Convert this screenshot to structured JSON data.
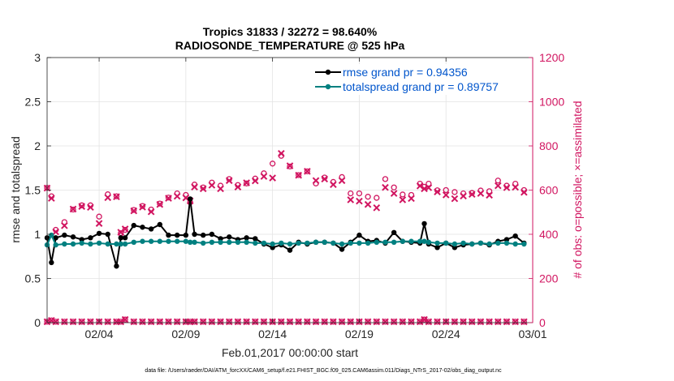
{
  "chart_data": {
    "type": "line",
    "title": "Tropics 31833 / 32272 = 98.640%",
    "subtitle": "RADIOSONDE_TEMPERATURE @ 525 hPa",
    "xlabel": "Feb.01,2017 00:00:00 start",
    "ylabel": "rmse and totalspread",
    "y2label": "# of obs: o=possible; ×=assimilated",
    "footnote": "data file: /Users/raeder/DAI/ATM_forcXX/CAM6_setup/f.e21.FHIST_BGC.f09_025.CAM6assim.011/Diags_NTrS_2017-02/obs_diag_output.nc",
    "xlim": [
      1,
      29
    ],
    "ylim": [
      0,
      3
    ],
    "y2lim": [
      0,
      1200
    ],
    "grid": true,
    "legend_position": "top-right",
    "x_ticks": [
      {
        "value": 4,
        "label": "02/04"
      },
      {
        "value": 9,
        "label": "02/09"
      },
      {
        "value": 14,
        "label": "02/14"
      },
      {
        "value": 19,
        "label": "02/19"
      },
      {
        "value": 24,
        "label": "02/24"
      },
      {
        "value": 29,
        "label": "03/01"
      }
    ],
    "y_ticks": [
      {
        "value": 0,
        "label": "0"
      },
      {
        "value": 0.5,
        "label": "0.5"
      },
      {
        "value": 1,
        "label": "1"
      },
      {
        "value": 1.5,
        "label": "1.5"
      },
      {
        "value": 2,
        "label": "2"
      },
      {
        "value": 2.5,
        "label": "2.5"
      },
      {
        "value": 3,
        "label": "3"
      }
    ],
    "y2_ticks": [
      {
        "value": 0,
        "label": "0"
      },
      {
        "value": 200,
        "label": "200"
      },
      {
        "value": 400,
        "label": "400"
      },
      {
        "value": 600,
        "label": "600"
      },
      {
        "value": 800,
        "label": "800"
      },
      {
        "value": 1000,
        "label": "1000"
      },
      {
        "value": 1200,
        "label": "1200"
      }
    ],
    "x": [
      1.0,
      1.25,
      1.5,
      2.0,
      2.5,
      3.0,
      3.5,
      4.0,
      4.5,
      5.0,
      5.25,
      5.5,
      6.0,
      6.5,
      7.0,
      7.5,
      8.0,
      8.5,
      9.0,
      9.25,
      9.5,
      10.0,
      10.5,
      11.0,
      11.5,
      12.0,
      12.5,
      13.0,
      13.5,
      14.0,
      14.5,
      15.0,
      15.5,
      16.0,
      16.5,
      17.0,
      17.5,
      18.0,
      18.5,
      19.0,
      19.5,
      20.0,
      20.5,
      21.0,
      21.5,
      22.0,
      22.5,
      22.75,
      23.0,
      23.5,
      24.0,
      24.5,
      25.0,
      25.5,
      26.0,
      26.5,
      27.0,
      27.5,
      28.0,
      28.5
    ],
    "series": [
      {
        "name": "rmse grand pr = 0.94356",
        "axis": "left",
        "color": "#000000",
        "values": [
          0.96,
          0.68,
          0.96,
          0.99,
          0.97,
          0.94,
          0.96,
          1.01,
          1.0,
          0.64,
          0.96,
          0.96,
          1.1,
          1.08,
          1.06,
          1.11,
          0.99,
          0.99,
          0.99,
          1.4,
          1.0,
          0.99,
          1.0,
          0.95,
          0.97,
          0.94,
          0.96,
          0.95,
          0.89,
          0.85,
          0.88,
          0.82,
          0.91,
          0.89,
          0.91,
          0.91,
          0.9,
          0.83,
          0.91,
          0.99,
          0.92,
          0.93,
          0.9,
          1.02,
          0.92,
          0.91,
          0.9,
          1.12,
          0.89,
          0.85,
          0.9,
          0.85,
          0.88,
          0.89,
          0.9,
          0.88,
          0.92,
          0.94,
          0.98,
          0.9
        ]
      },
      {
        "name": "totalspread grand pr = 0.89757",
        "axis": "left",
        "color": "#008080",
        "values": [
          0.88,
          0.99,
          0.88,
          0.89,
          0.89,
          0.9,
          0.89,
          0.9,
          0.89,
          0.89,
          0.89,
          0.89,
          0.91,
          0.92,
          0.92,
          0.92,
          0.92,
          0.92,
          0.92,
          0.91,
          0.91,
          0.9,
          0.91,
          0.91,
          0.91,
          0.91,
          0.91,
          0.9,
          0.9,
          0.89,
          0.9,
          0.89,
          0.9,
          0.9,
          0.91,
          0.91,
          0.9,
          0.89,
          0.9,
          0.9,
          0.9,
          0.91,
          0.91,
          0.91,
          0.92,
          0.92,
          0.92,
          0.92,
          0.91,
          0.9,
          0.9,
          0.89,
          0.9,
          0.89,
          0.9,
          0.89,
          0.9,
          0.9,
          0.89,
          0.89
        ]
      },
      {
        "name": "possible",
        "axis": "right",
        "marker": "circle",
        "color": "#d11560",
        "values": [
          610,
          572,
          420,
          455,
          512,
          531,
          531,
          480,
          581,
          572,
          405,
          420,
          510,
          528,
          512,
          539,
          566,
          585,
          578,
          545,
          625,
          612,
          634,
          620,
          650,
          623,
          630,
          652,
          676,
          720,
          755,
          707,
          668,
          685,
          630,
          657,
          637,
          659,
          585,
          585,
          570,
          565,
          650,
          612,
          580,
          578,
          629,
          615,
          629,
          599,
          600,
          591,
          585,
          587,
          598,
          595,
          643,
          620,
          629,
          600
        ]
      },
      {
        "name": "assimilated",
        "axis": "right",
        "marker": "x",
        "color": "#d11560",
        "values": [
          609,
          563,
          411,
          439,
          514,
          526,
          522,
          449,
          566,
          570,
          409,
          424,
          506,
          523,
          502,
          535,
          563,
          572,
          565,
          551,
          614,
          606,
          622,
          606,
          643,
          614,
          633,
          642,
          662,
          655,
          766,
          710,
          667,
          685,
          643,
          650,
          625,
          643,
          556,
          550,
          535,
          520,
          612,
          585,
          556,
          562,
          619,
          606,
          611,
          592,
          578,
          561,
          573,
          581,
          585,
          577,
          620,
          611,
          613,
          590
        ]
      },
      {
        "name": "possible-bottom",
        "axis": "right",
        "marker": "circle",
        "color": "#d11560",
        "values": [
          4,
          10,
          4,
          4,
          4,
          4,
          4,
          4,
          4,
          4,
          4,
          14,
          4,
          4,
          4,
          4,
          4,
          4,
          4,
          4,
          4,
          4,
          4,
          4,
          4,
          4,
          4,
          4,
          4,
          4,
          4,
          4,
          4,
          4,
          4,
          4,
          4,
          4,
          4,
          4,
          4,
          4,
          4,
          4,
          4,
          4,
          4,
          14,
          4,
          4,
          4,
          4,
          4,
          4,
          4,
          4,
          4,
          4,
          4,
          4
        ]
      },
      {
        "name": "assimilated-bottom",
        "axis": "right",
        "marker": "x",
        "color": "#d11560",
        "values": [
          4,
          10,
          4,
          4,
          4,
          4,
          4,
          4,
          4,
          4,
          4,
          14,
          4,
          4,
          4,
          4,
          4,
          4,
          4,
          4,
          4,
          4,
          4,
          4,
          4,
          4,
          4,
          4,
          4,
          4,
          4,
          4,
          4,
          4,
          4,
          4,
          4,
          4,
          4,
          4,
          4,
          4,
          4,
          4,
          4,
          4,
          4,
          14,
          4,
          4,
          4,
          4,
          4,
          4,
          4,
          4,
          4,
          4,
          4,
          4
        ]
      }
    ]
  }
}
